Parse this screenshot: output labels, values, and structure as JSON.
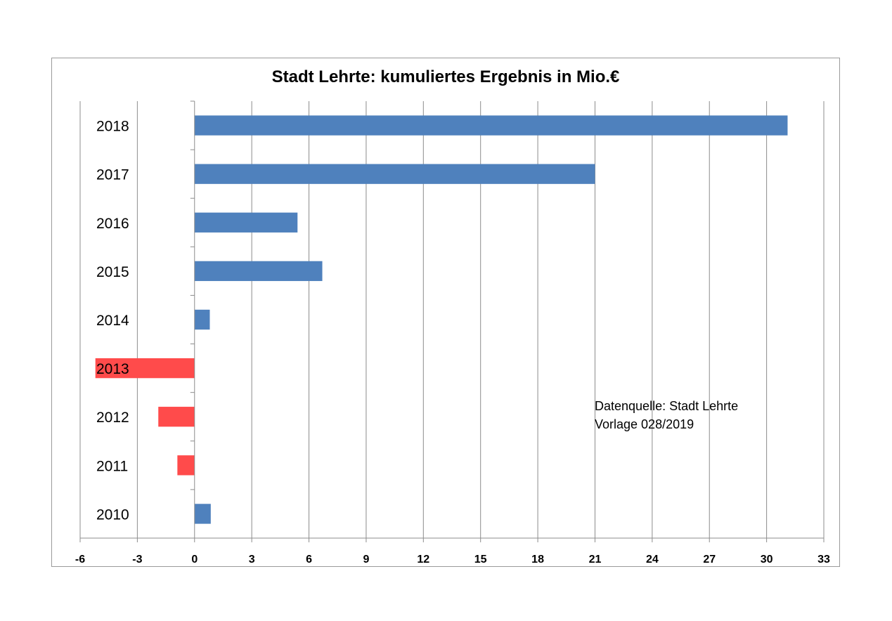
{
  "chart_data": {
    "type": "bar",
    "orientation": "horizontal",
    "title": "Stadt Lehrte: kumuliertes Ergebnis in Mio.€",
    "xlabel": "",
    "ylabel": "",
    "categories": [
      "2018",
      "2017",
      "2016",
      "2015",
      "2014",
      "2013",
      "2012",
      "2011",
      "2010"
    ],
    "values": [
      31.1,
      21.0,
      5.4,
      6.7,
      0.8,
      -5.2,
      -1.9,
      -0.9,
      0.85
    ],
    "xlim": [
      -6,
      33
    ],
    "xticks": [
      "-6",
      "-3",
      "0",
      "3",
      "6",
      "9",
      "12",
      "15",
      "18",
      "21",
      "24",
      "27",
      "30",
      "33"
    ],
    "grid": true,
    "legend": "none",
    "colors": {
      "positive": "#4f81bd",
      "negative": "#ff4b4b",
      "grid": "#8c8c8c",
      "axis": "#8c8c8c"
    }
  },
  "annotation": {
    "line1": "Datenquelle: Stadt Lehrte",
    "line2": "Vorlage 028/2019"
  }
}
